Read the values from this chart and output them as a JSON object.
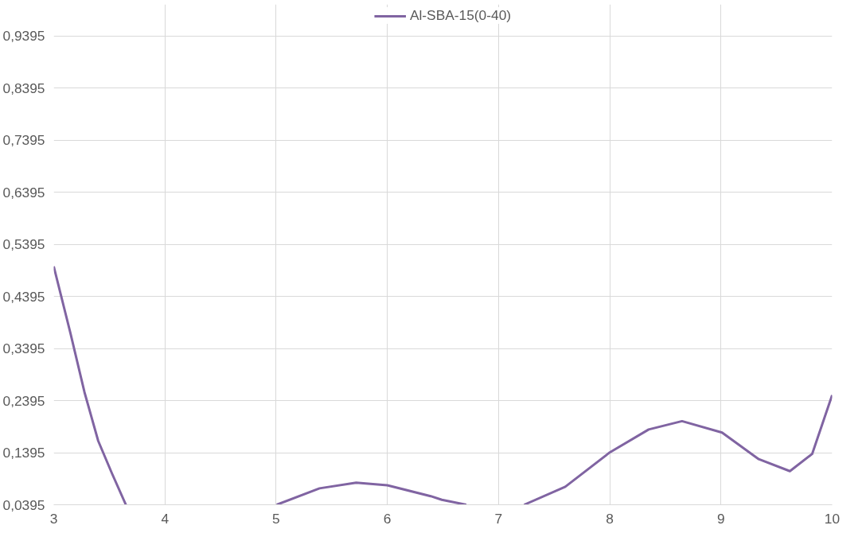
{
  "chart_data": {
    "type": "line",
    "series": [
      {
        "name": "Al-SBA-15(0-40)",
        "color": "#8064a2",
        "x": [
          3.0,
          3.15,
          3.276,
          3.4,
          3.525,
          3.649,
          null,
          5.005,
          5.39,
          5.72,
          6.0,
          6.39,
          6.49,
          6.71,
          null,
          7.23,
          7.6,
          8.0,
          8.35,
          8.65,
          9.01,
          9.34,
          9.62,
          9.82,
          10.0
        ],
        "values": [
          0.497,
          0.369,
          0.256,
          0.162,
          0.099,
          0.0395,
          null,
          0.0395,
          0.071,
          0.082,
          0.077,
          0.056,
          0.049,
          0.0395,
          null,
          0.0395,
          0.074,
          0.14,
          0.184,
          0.2,
          0.178,
          0.127,
          0.104,
          0.137,
          0.25
        ]
      }
    ],
    "xlim": [
      3,
      10
    ],
    "xticks": [
      3,
      4,
      5,
      6,
      7,
      8,
      9,
      10
    ],
    "ylim": [
      0.0395,
      1.0
    ],
    "yticks": [
      {
        "value": 0.0395,
        "label": "0,0395"
      },
      {
        "value": 0.1395,
        "label": "0,1395"
      },
      {
        "value": 0.2395,
        "label": "0,2395"
      },
      {
        "value": 0.3395,
        "label": "0,3395"
      },
      {
        "value": 0.4395,
        "label": "0,4395"
      },
      {
        "value": 0.5395,
        "label": "0,5395"
      },
      {
        "value": 0.6395,
        "label": "0,6395"
      },
      {
        "value": 0.7395,
        "label": "0,7395"
      },
      {
        "value": 0.8395,
        "label": "0,8395"
      },
      {
        "value": 0.9395,
        "label": "0,9395"
      }
    ],
    "grid": true,
    "legend": "top",
    "marker": "none",
    "line_style": "solid"
  }
}
